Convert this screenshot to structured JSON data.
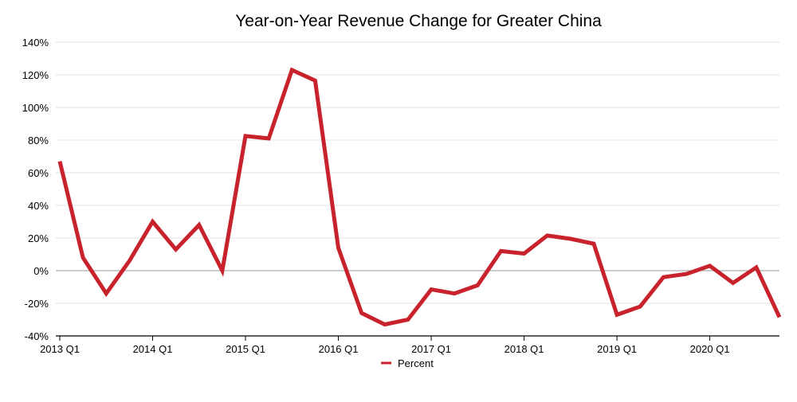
{
  "chart_data": {
    "type": "line",
    "title": "Year-on-Year Revenue Change for Greater China",
    "xlabel": "",
    "ylabel": "",
    "ylim": [
      -40,
      140
    ],
    "y_ticks": [
      -40,
      -20,
      0,
      20,
      40,
      60,
      80,
      100,
      120,
      140
    ],
    "y_tick_labels": [
      "-40%",
      "-20%",
      "0%",
      "20%",
      "40%",
      "60%",
      "80%",
      "100%",
      "120%",
      "140%"
    ],
    "x_tick_labels": [
      "2013 Q1",
      "2014 Q1",
      "2015 Q1",
      "2016 Q1",
      "2017 Q1",
      "2018 Q1",
      "2019 Q1",
      "2020 Q1"
    ],
    "x_tick_every": 4,
    "grid": true,
    "legend_position": "bottom-center",
    "colors": {
      "series": "#c8232c",
      "grid": "#e3e3e3",
      "zero_line": "#9a9a9a",
      "axis": "#000000"
    },
    "x": [
      "2013 Q1",
      "2013 Q2",
      "2013 Q3",
      "2013 Q4",
      "2014 Q1",
      "2014 Q2",
      "2014 Q3",
      "2014 Q4",
      "2015 Q1",
      "2015 Q2",
      "2015 Q3",
      "2015 Q4",
      "2016 Q1",
      "2016 Q2",
      "2016 Q3",
      "2016 Q4",
      "2017 Q1",
      "2017 Q2",
      "2017 Q3",
      "2017 Q4",
      "2018 Q1",
      "2018 Q2",
      "2018 Q3",
      "2018 Q4",
      "2019 Q1",
      "2019 Q2",
      "2019 Q3",
      "2019 Q4",
      "2020 Q1",
      "2020 Q2",
      "2020 Q3",
      "2020 Q4"
    ],
    "series": [
      {
        "name": "Percent",
        "values": [
          67,
          8,
          -14,
          6,
          30,
          13,
          28,
          0,
          82.5,
          81,
          123,
          116.5,
          14,
          -26,
          -33,
          -30,
          -11.5,
          -14,
          -9,
          12,
          10.5,
          21.5,
          19.5,
          16.5,
          -27,
          -22,
          -4,
          -2,
          3,
          -7.5,
          2,
          -28.5
        ]
      }
    ]
  }
}
